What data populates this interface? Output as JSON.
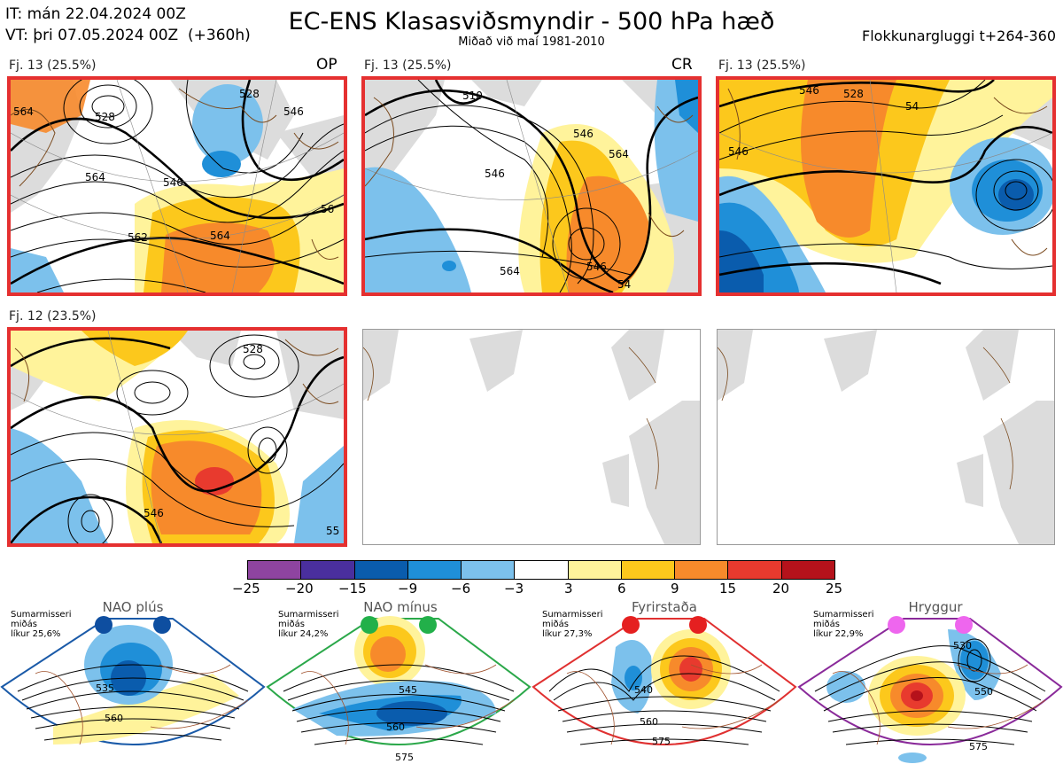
{
  "header": {
    "init_line": "IT: mán 22.04.2024 00Z",
    "valid_line": "VT: þri 07.05.2024 00Z  (+360h)",
    "title": "EC-ENS Klasasviðsmyndir - 500 hPa hæð",
    "subtitle": "Miðað við maí 1981-2010",
    "window": "Flokkunargluggi t+264-360"
  },
  "panels": [
    {
      "label": "Fj. 13 (25.5%)",
      "tag": "OP",
      "selected": true
    },
    {
      "label": "Fj. 13 (25.5%)",
      "tag": "CR",
      "selected": true
    },
    {
      "label": "Fj. 13 (25.5%)",
      "tag": "",
      "selected": true
    },
    {
      "label": "Fj. 12 (23.5%)",
      "tag": "",
      "selected": true
    },
    {
      "label": "",
      "tag": "",
      "selected": false
    },
    {
      "label": "",
      "tag": "",
      "selected": false
    }
  ],
  "contour_labels": {
    "p1": [
      "528",
      "564",
      "546",
      "564",
      "562",
      "546",
      "564",
      "56",
      "528"
    ],
    "p2": [
      "510",
      "546",
      "564",
      "564",
      "546",
      "54",
      "546"
    ],
    "p3": [
      "528",
      "546",
      "546",
      "54"
    ],
    "p4": [
      "528",
      "546",
      "55"
    ]
  },
  "colorbar": {
    "ticks": [
      "−25",
      "−20",
      "−15",
      "−9",
      "−6",
      "−3",
      "3",
      "6",
      "9",
      "15",
      "20",
      "25"
    ],
    "colors": [
      "#8e44a0",
      "#4a2f9e",
      "#0a5cad",
      "#1f8fd8",
      "#7cc1ec",
      "#ffffff",
      "#fff39b",
      "#fcc81c",
      "#f78a2b",
      "#e83a2e",
      "#b5121b"
    ]
  },
  "bottom": [
    {
      "title": "NAO plús",
      "season": "Sumarmisseri",
      "median": "miðás",
      "prob": "líkur 25,6%",
      "color": "#1a5aa8",
      "dot": "#0e4ea0",
      "labels": [
        "535",
        "560"
      ]
    },
    {
      "title": "NAO mínus",
      "season": "Sumarmisseri",
      "median": "miðás",
      "prob": "líkur 24,2%",
      "color": "#2ba84a",
      "dot": "#22b04a",
      "labels": [
        "545",
        "560",
        "575"
      ]
    },
    {
      "title": "Fyrirstaða",
      "season": "Sumarmisseri",
      "median": "miðás",
      "prob": "líkur 27,3%",
      "color": "#e03030",
      "dot": "#e52020",
      "labels": [
        "540",
        "560",
        "575"
      ]
    },
    {
      "title": "Hryggur",
      "season": "Sumarmisseri",
      "median": "miðás",
      "prob": "líkur 22,9%",
      "color": "#8a2a9a",
      "dot": "#ee66ee",
      "labels": [
        "530",
        "550",
        "575"
      ]
    }
  ]
}
